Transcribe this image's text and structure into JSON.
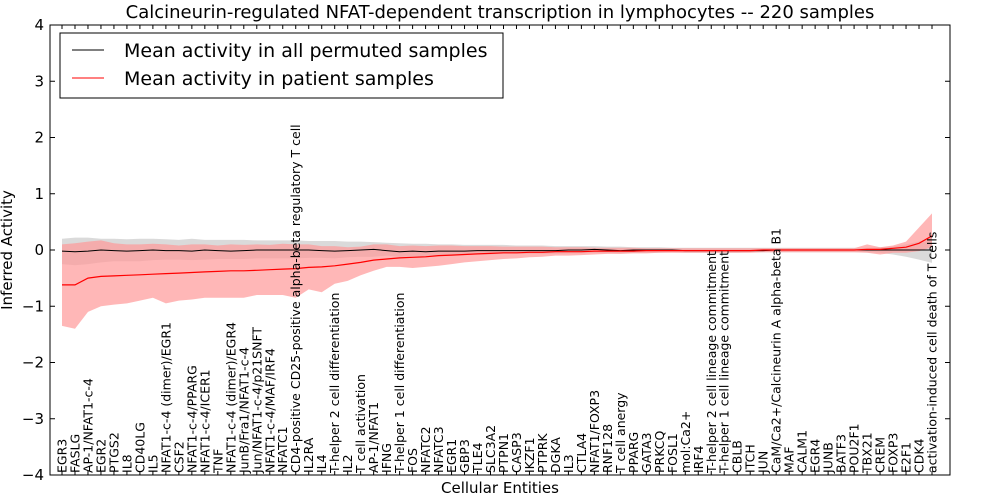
{
  "chart_data": {
    "type": "line",
    "title": "Calcineurin-regulated NFAT-dependent transcription in lymphocytes -- 220 samples",
    "xlabel": "Cellular Entities",
    "ylabel": "Inferred Activity",
    "ylim": [
      -4,
      4
    ],
    "yticks": [
      -4,
      -3,
      -2,
      -1,
      0,
      1,
      2,
      3,
      4
    ],
    "grid": false,
    "legend_position": "top-left",
    "categories": [
      "EGR3",
      "FASLG",
      "AP-1/NFAT1-c-4",
      "EGR2",
      "PTGS2",
      "IL8",
      "CD40LG",
      "IL5",
      "NFAT1-c-4 (dimer)/EGR1",
      "CSF2",
      "NFAT1-c-4/PPARG",
      "NFAT1-c-4/ICER1",
      "TNF",
      "NFAT1-c-4 (dimer)/EGR4",
      "JunB/Fra1/NFAT1-c-4",
      "Jun/NFAT1-c-4/p21SNFT",
      "NFAT1-c-4/MAF/IRF4",
      "NFATC1",
      "CD4-positive CD25-positive alpha-beta regulatory T cell",
      "IL2RA",
      "IL4",
      "T-helper 2 cell differentiation",
      "IL2",
      "T cell activation",
      "AP-1/NFAT1",
      "IFNG",
      "T-helper 1 cell differentiation",
      "FOS",
      "NFATC2",
      "NFATC3",
      "EGR1",
      "GBP3",
      "TLE4",
      "SLC3A2",
      "PTPN1",
      "CASP3",
      "IKZF1",
      "PTPRK",
      "DGKA",
      "IL3",
      "CTLA4",
      "NFAT1/FOXP3",
      "RNF128",
      "T cell anergy",
      "PPARG",
      "GATA3",
      "PRKCQ",
      "FOSL1",
      "mol:Ca2+",
      "IRF4",
      "T-helper 2 cell lineage commitment",
      "T-helper 1 cell lineage commitment",
      "CBLB",
      "ITCH",
      "JUN",
      "CaM/Ca2+/Calcineurin A alpha-beta B1",
      "MAF",
      "CALM1",
      "EGR4",
      "JUNB",
      "BATF3",
      "POU2F1",
      "TBX21",
      "CREM",
      "FOXP3",
      "E2F1",
      "CDK4",
      "activation-induced cell death of T cells"
    ],
    "series": [
      {
        "name": "Mean activity in all permuted samples",
        "color": "#000000",
        "band_color": "#bbbbbb",
        "values": [
          -0.02,
          -0.03,
          -0.02,
          0.0,
          -0.01,
          -0.02,
          -0.01,
          0.0,
          -0.01,
          -0.01,
          -0.02,
          0.0,
          -0.01,
          -0.02,
          -0.01,
          0.0,
          0.0,
          0.0,
          0.0,
          0.0,
          -0.01,
          -0.02,
          -0.01,
          0.0,
          0.01,
          -0.01,
          -0.03,
          -0.02,
          -0.03,
          -0.02,
          -0.02,
          -0.02,
          -0.01,
          -0.01,
          -0.01,
          -0.01,
          -0.01,
          -0.01,
          -0.01,
          0.0,
          0.0,
          0.01,
          0.0,
          -0.01,
          0.0,
          0.0,
          0.0,
          0.0,
          -0.01,
          -0.01,
          -0.01,
          -0.01,
          -0.01,
          -0.01,
          -0.01,
          0.0,
          0.0,
          0.0,
          0.0,
          0.0,
          0.0,
          0.0,
          0.0,
          0.0,
          0.0,
          0.0,
          0.0,
          0.0
        ],
        "upper": [
          0.2,
          0.22,
          0.22,
          0.2,
          0.2,
          0.19,
          0.2,
          0.2,
          0.19,
          0.18,
          0.2,
          0.18,
          0.18,
          0.18,
          0.18,
          0.17,
          0.17,
          0.17,
          0.17,
          0.16,
          0.16,
          0.16,
          0.15,
          0.15,
          0.14,
          0.13,
          0.12,
          0.11,
          0.11,
          0.1,
          0.1,
          0.09,
          0.09,
          0.09,
          0.09,
          0.08,
          0.08,
          0.08,
          0.07,
          0.07,
          0.07,
          0.07,
          0.06,
          0.06,
          0.05,
          0.05,
          0.05,
          0.04,
          0.04,
          0.04,
          0.04,
          0.04,
          0.04,
          0.04,
          0.04,
          0.04,
          0.04,
          0.04,
          0.04,
          0.04,
          0.04,
          0.04,
          0.04,
          0.05,
          0.06,
          0.1,
          0.15,
          0.22
        ],
        "lower": [
          -0.25,
          -0.27,
          -0.25,
          -0.22,
          -0.2,
          -0.2,
          -0.2,
          -0.18,
          -0.17,
          -0.17,
          -0.18,
          -0.17,
          -0.16,
          -0.16,
          -0.16,
          -0.15,
          -0.15,
          -0.15,
          -0.15,
          -0.14,
          -0.14,
          -0.15,
          -0.13,
          -0.12,
          -0.12,
          -0.1,
          -0.12,
          -0.11,
          -0.12,
          -0.1,
          -0.09,
          -0.08,
          -0.08,
          -0.08,
          -0.07,
          -0.07,
          -0.07,
          -0.07,
          -0.07,
          -0.06,
          -0.06,
          -0.05,
          -0.05,
          -0.06,
          -0.05,
          -0.05,
          -0.05,
          -0.04,
          -0.05,
          -0.05,
          -0.05,
          -0.05,
          -0.05,
          -0.04,
          -0.04,
          -0.04,
          -0.04,
          -0.04,
          -0.04,
          -0.04,
          -0.04,
          -0.04,
          -0.04,
          -0.05,
          -0.08,
          -0.12,
          -0.17,
          -0.23
        ]
      },
      {
        "name": "Mean activity in patient samples",
        "color": "#ff0000",
        "band_color": "#ff9999",
        "values": [
          -0.62,
          -0.62,
          -0.5,
          -0.47,
          -0.46,
          -0.45,
          -0.44,
          -0.43,
          -0.42,
          -0.41,
          -0.4,
          -0.39,
          -0.38,
          -0.37,
          -0.37,
          -0.36,
          -0.35,
          -0.34,
          -0.33,
          -0.31,
          -0.3,
          -0.28,
          -0.25,
          -0.22,
          -0.18,
          -0.16,
          -0.14,
          -0.13,
          -0.12,
          -0.1,
          -0.09,
          -0.08,
          -0.07,
          -0.06,
          -0.05,
          -0.05,
          -0.04,
          -0.04,
          -0.03,
          -0.03,
          -0.03,
          -0.02,
          -0.02,
          -0.02,
          -0.02,
          -0.01,
          -0.01,
          -0.01,
          -0.01,
          -0.01,
          -0.01,
          -0.01,
          -0.01,
          -0.01,
          0.0,
          0.0,
          0.0,
          0.0,
          0.0,
          0.0,
          0.0,
          0.0,
          0.01,
          0.01,
          0.03,
          0.05,
          0.12,
          0.25
        ],
        "upper": [
          0.1,
          0.12,
          0.15,
          0.17,
          0.12,
          0.1,
          0.1,
          0.11,
          0.1,
          0.08,
          0.1,
          0.1,
          0.08,
          0.1,
          0.09,
          0.1,
          0.09,
          0.11,
          0.1,
          0.1,
          0.07,
          0.07,
          0.05,
          0.06,
          0.1,
          0.1,
          0.07,
          0.08,
          0.07,
          0.08,
          0.08,
          0.07,
          0.07,
          0.07,
          0.06,
          0.06,
          0.06,
          0.06,
          0.05,
          0.05,
          0.05,
          0.04,
          0.04,
          0.04,
          0.04,
          0.03,
          0.03,
          0.03,
          0.03,
          0.03,
          0.03,
          0.03,
          0.03,
          0.03,
          0.03,
          0.03,
          0.03,
          0.03,
          0.03,
          0.03,
          0.03,
          0.03,
          0.1,
          0.05,
          0.08,
          0.15,
          0.4,
          0.65
        ],
        "lower": [
          -1.35,
          -1.4,
          -1.1,
          -1.0,
          -0.97,
          -0.95,
          -0.9,
          -0.85,
          -0.95,
          -0.9,
          -0.88,
          -0.85,
          -0.85,
          -0.85,
          -0.85,
          -0.8,
          -0.8,
          -0.8,
          -0.85,
          -0.7,
          -0.75,
          -0.6,
          -0.55,
          -0.45,
          -0.37,
          -0.3,
          -0.3,
          -0.32,
          -0.3,
          -0.28,
          -0.25,
          -0.22,
          -0.2,
          -0.18,
          -0.16,
          -0.15,
          -0.13,
          -0.12,
          -0.1,
          -0.1,
          -0.09,
          -0.08,
          -0.07,
          -0.07,
          -0.06,
          -0.06,
          -0.05,
          -0.05,
          -0.05,
          -0.05,
          -0.05,
          -0.05,
          -0.05,
          -0.05,
          -0.04,
          -0.04,
          -0.04,
          -0.04,
          -0.04,
          -0.04,
          -0.04,
          -0.04,
          -0.05,
          -0.08,
          -0.05,
          -0.05,
          -0.02,
          0.05
        ]
      }
    ]
  }
}
